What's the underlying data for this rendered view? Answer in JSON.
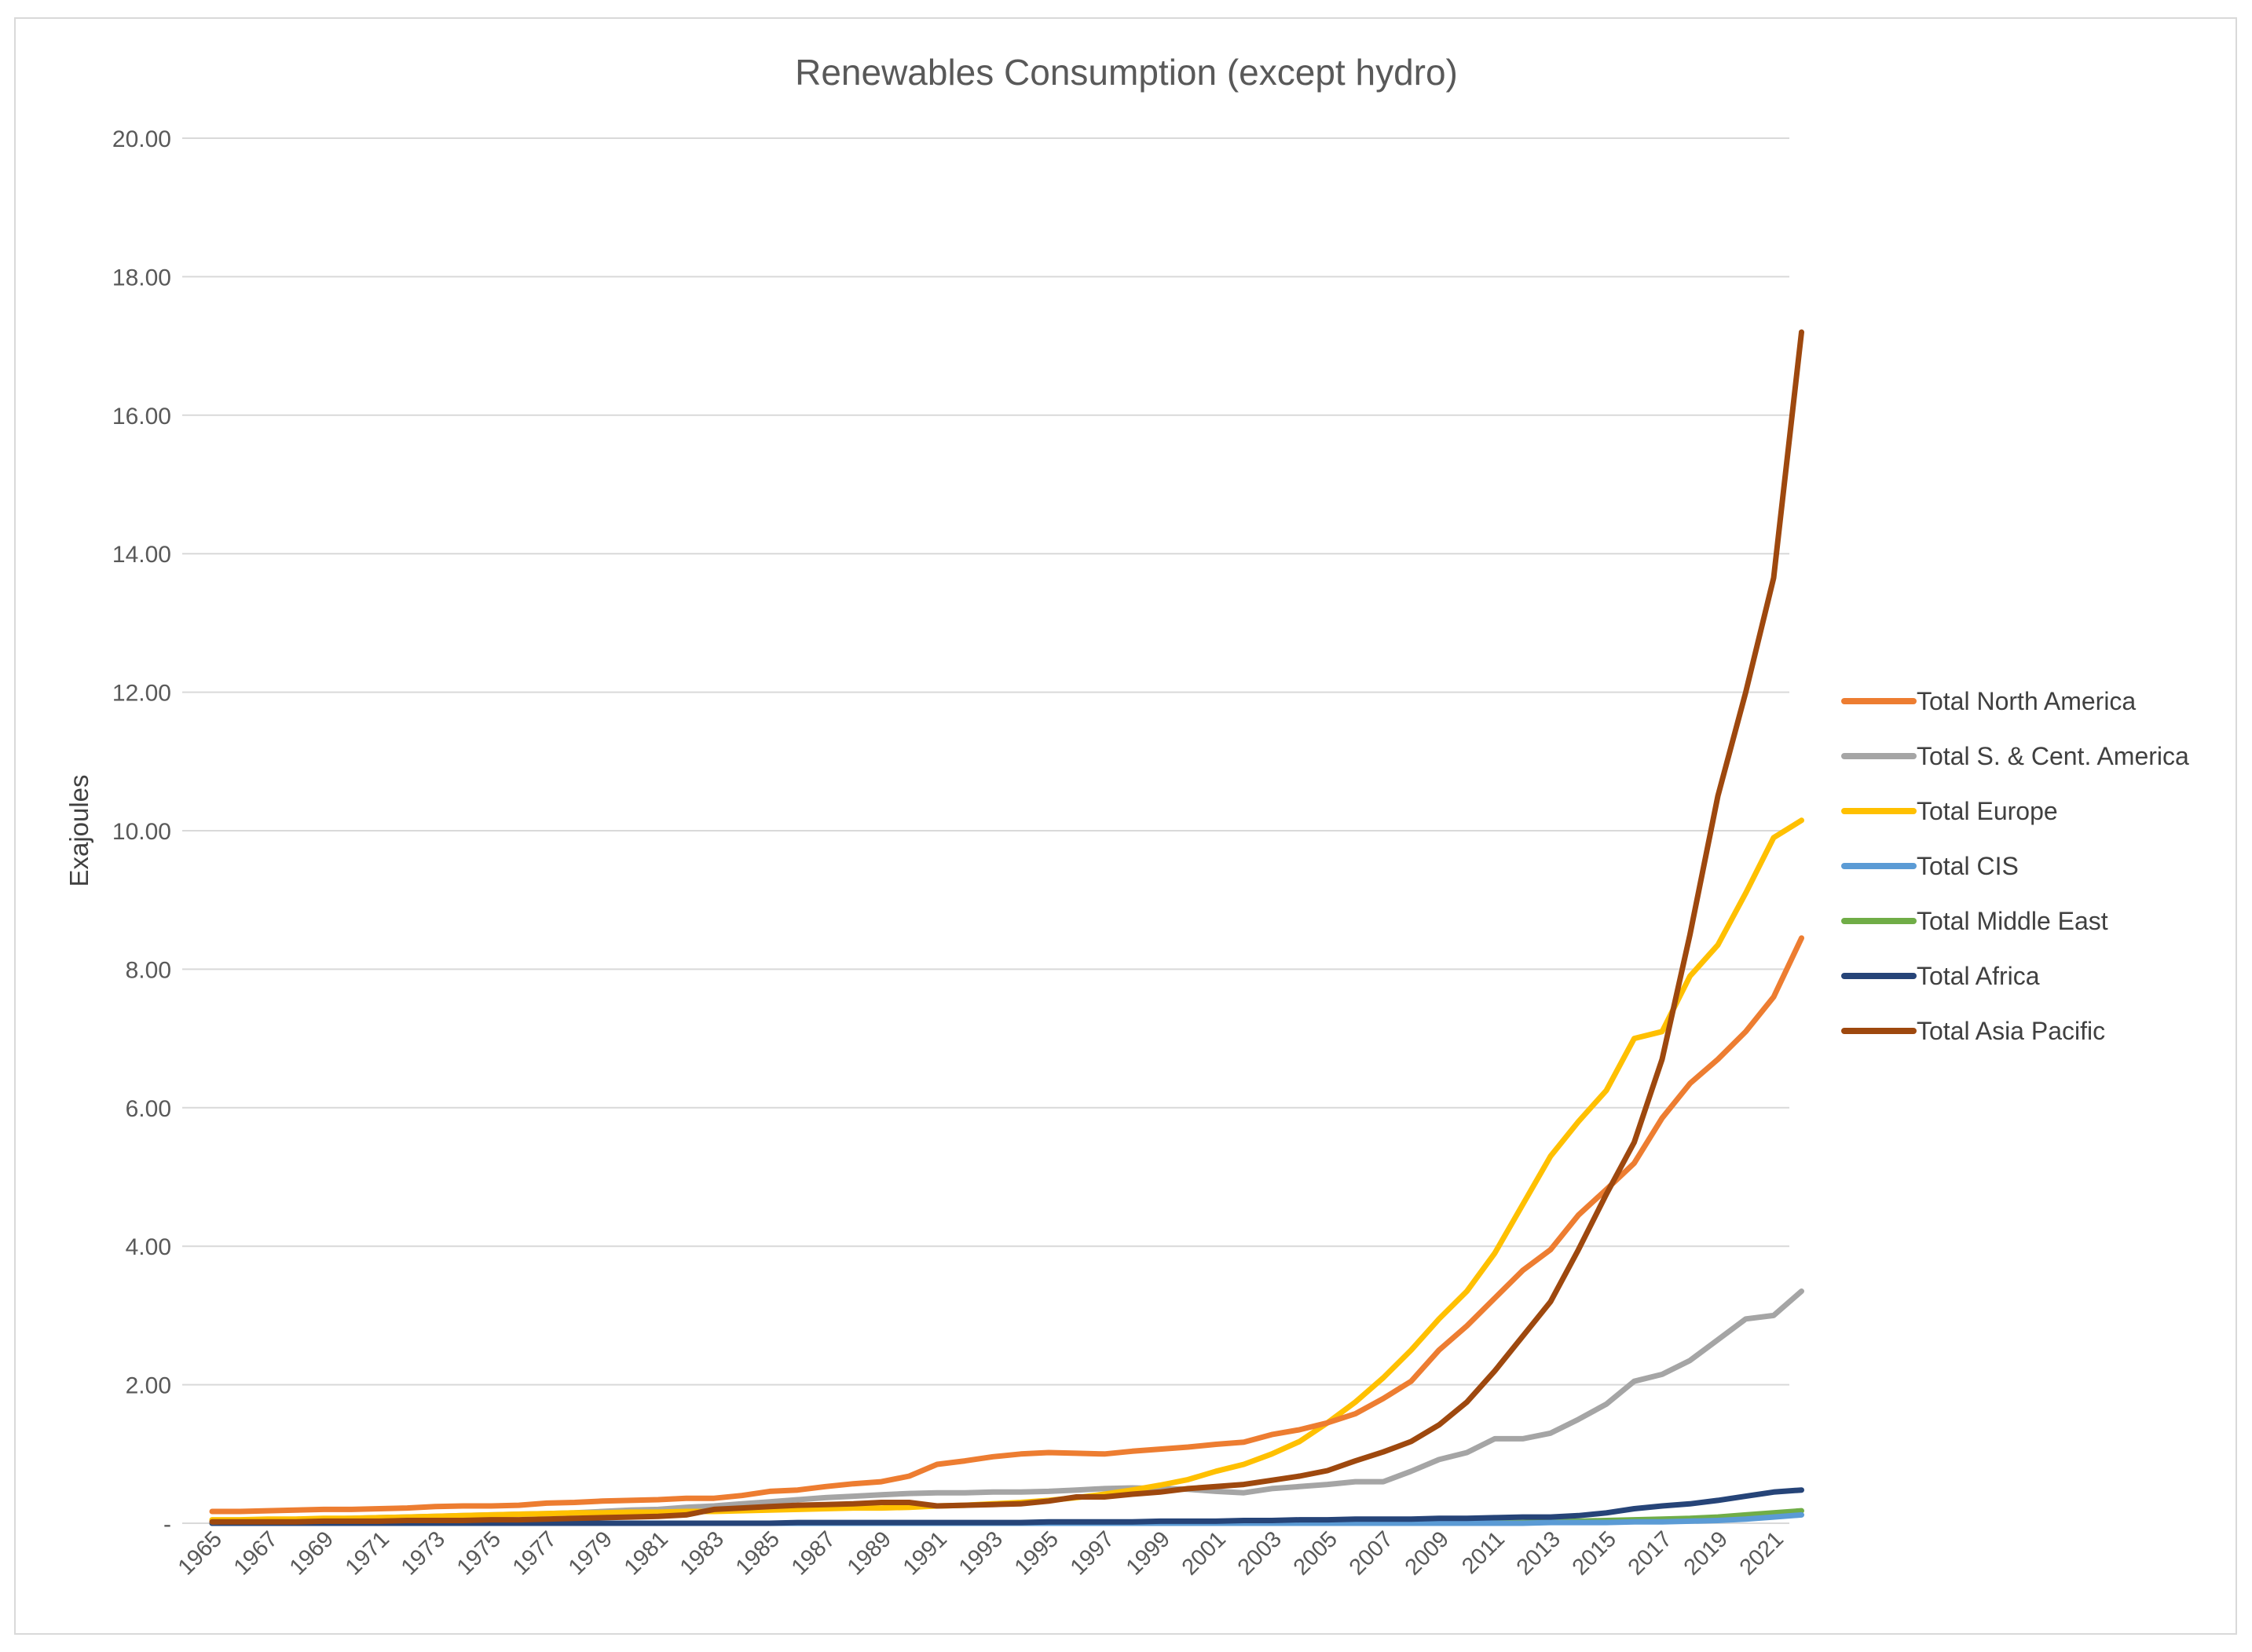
{
  "chart_data": {
    "type": "line",
    "title": "Renewables Consumption (except hydro)",
    "ylabel": "Exajoules",
    "xlabel": "",
    "ylim": [
      0,
      20
    ],
    "y_ticks": [
      {
        "value": 0,
        "label": "-"
      },
      {
        "value": 2,
        "label": "2.00"
      },
      {
        "value": 4,
        "label": "4.00"
      },
      {
        "value": 6,
        "label": "6.00"
      },
      {
        "value": 8,
        "label": "8.00"
      },
      {
        "value": 10,
        "label": "10.00"
      },
      {
        "value": 12,
        "label": "12.00"
      },
      {
        "value": 14,
        "label": "14.00"
      },
      {
        "value": 16,
        "label": "16.00"
      },
      {
        "value": 18,
        "label": "18.00"
      },
      {
        "value": 20,
        "label": "20.00"
      }
    ],
    "x_tick_labels": [
      "1965",
      "1967",
      "1969",
      "1971",
      "1973",
      "1975",
      "1977",
      "1979",
      "1981",
      "1983",
      "1985",
      "1987",
      "1989",
      "1991",
      "1993",
      "1995",
      "1997",
      "1999",
      "2001",
      "2003",
      "2005",
      "2007",
      "2009",
      "2011",
      "2013",
      "2015",
      "2017",
      "2019",
      "2021"
    ],
    "x_start": 1965,
    "x_end": 2021,
    "grid": true,
    "legend_position": "right",
    "series": [
      {
        "name": "Total North America",
        "color": "#ED7D31",
        "values": [
          0.17,
          0.17,
          0.18,
          0.19,
          0.2,
          0.2,
          0.21,
          0.22,
          0.24,
          0.25,
          0.25,
          0.26,
          0.29,
          0.3,
          0.32,
          0.33,
          0.34,
          0.36,
          0.36,
          0.4,
          0.46,
          0.48,
          0.53,
          0.57,
          0.6,
          0.68,
          0.85,
          0.9,
          0.96,
          1.0,
          1.02,
          1.01,
          1.0,
          1.04,
          1.07,
          1.1,
          1.14,
          1.17,
          1.28,
          1.35,
          1.45,
          1.58,
          1.8,
          2.05,
          2.5,
          2.85,
          3.25,
          3.65,
          3.95,
          4.45,
          4.82,
          5.2,
          5.85,
          6.35,
          6.7,
          7.1,
          7.6,
          8.45
        ]
      },
      {
        "name": "Total S. & Cent. America",
        "color": "#A5A5A5",
        "values": [
          0.02,
          0.03,
          0.04,
          0.05,
          0.06,
          0.07,
          0.08,
          0.09,
          0.1,
          0.11,
          0.12,
          0.13,
          0.14,
          0.15,
          0.17,
          0.19,
          0.2,
          0.23,
          0.25,
          0.28,
          0.31,
          0.34,
          0.37,
          0.39,
          0.41,
          0.43,
          0.44,
          0.44,
          0.45,
          0.45,
          0.46,
          0.48,
          0.5,
          0.51,
          0.5,
          0.49,
          0.46,
          0.44,
          0.5,
          0.53,
          0.56,
          0.6,
          0.6,
          0.75,
          0.92,
          1.02,
          1.22,
          1.22,
          1.3,
          1.5,
          1.72,
          2.05,
          2.15,
          2.35,
          2.65,
          2.95,
          3.0,
          3.35
        ]
      },
      {
        "name": "Total Europe",
        "color": "#FFC000",
        "values": [
          0.05,
          0.05,
          0.06,
          0.06,
          0.07,
          0.07,
          0.08,
          0.09,
          0.1,
          0.11,
          0.12,
          0.13,
          0.14,
          0.15,
          0.15,
          0.16,
          0.16,
          0.17,
          0.17,
          0.18,
          0.19,
          0.2,
          0.21,
          0.22,
          0.22,
          0.23,
          0.25,
          0.26,
          0.28,
          0.3,
          0.33,
          0.37,
          0.42,
          0.48,
          0.55,
          0.63,
          0.75,
          0.85,
          1.0,
          1.18,
          1.45,
          1.75,
          2.1,
          2.5,
          2.95,
          3.35,
          3.9,
          4.6,
          5.3,
          5.8,
          6.25,
          7.0,
          7.1,
          7.9,
          8.35,
          9.1,
          9.9,
          10.15
        ]
      },
      {
        "name": "Total CIS",
        "color": "#5B9BD5",
        "values": [
          0.0,
          0.0,
          0.0,
          0.0,
          0.0,
          0.0,
          0.0,
          0.0,
          0.0,
          0.0,
          0.0,
          0.0,
          0.0,
          0.0,
          0.0,
          0.0,
          0.0,
          0.0,
          0.0,
          0.0,
          0.0,
          0.0,
          0.0,
          0.0,
          0.0,
          0.0,
          0.0,
          0.0,
          0.0,
          0.0,
          0.0,
          0.0,
          0.0,
          0.0,
          0.0,
          0.0,
          0.0,
          0.0,
          0.0,
          0.0,
          0.0,
          0.0,
          0.0,
          0.0,
          0.0,
          0.0,
          0.0,
          0.0,
          0.01,
          0.01,
          0.01,
          0.02,
          0.02,
          0.03,
          0.04,
          0.06,
          0.09,
          0.12
        ]
      },
      {
        "name": "Total Middle East",
        "color": "#70AD47",
        "values": [
          0.0,
          0.0,
          0.0,
          0.0,
          0.0,
          0.0,
          0.0,
          0.0,
          0.0,
          0.0,
          0.0,
          0.0,
          0.0,
          0.0,
          0.0,
          0.0,
          0.0,
          0.0,
          0.0,
          0.0,
          0.0,
          0.0,
          0.0,
          0.0,
          0.0,
          0.0,
          0.0,
          0.0,
          0.0,
          0.0,
          0.0,
          0.0,
          0.0,
          0.0,
          0.0,
          0.0,
          0.0,
          0.0,
          0.0,
          0.0,
          0.0,
          0.0,
          0.0,
          0.0,
          0.0,
          0.01,
          0.01,
          0.01,
          0.02,
          0.03,
          0.04,
          0.05,
          0.06,
          0.07,
          0.09,
          0.12,
          0.15,
          0.18
        ]
      },
      {
        "name": "Total Africa",
        "color": "#264478",
        "values": [
          0.0,
          0.0,
          0.0,
          0.0,
          0.0,
          0.0,
          0.0,
          0.0,
          0.0,
          0.0,
          0.0,
          0.0,
          0.0,
          0.0,
          0.0,
          0.0,
          0.0,
          0.0,
          0.0,
          0.0,
          0.0,
          0.01,
          0.01,
          0.01,
          0.01,
          0.01,
          0.01,
          0.01,
          0.01,
          0.01,
          0.02,
          0.02,
          0.02,
          0.02,
          0.03,
          0.03,
          0.03,
          0.04,
          0.04,
          0.05,
          0.05,
          0.06,
          0.06,
          0.06,
          0.07,
          0.07,
          0.08,
          0.09,
          0.09,
          0.11,
          0.15,
          0.21,
          0.25,
          0.28,
          0.33,
          0.39,
          0.45,
          0.48
        ]
      },
      {
        "name": "Total Asia Pacific",
        "color": "#9E480E",
        "values": [
          0.02,
          0.02,
          0.02,
          0.02,
          0.03,
          0.03,
          0.03,
          0.04,
          0.04,
          0.04,
          0.05,
          0.05,
          0.06,
          0.07,
          0.08,
          0.09,
          0.1,
          0.12,
          0.2,
          0.22,
          0.24,
          0.26,
          0.27,
          0.28,
          0.3,
          0.3,
          0.25,
          0.26,
          0.27,
          0.28,
          0.32,
          0.38,
          0.38,
          0.42,
          0.45,
          0.5,
          0.53,
          0.56,
          0.62,
          0.68,
          0.76,
          0.9,
          1.03,
          1.18,
          1.42,
          1.75,
          2.2,
          2.7,
          3.2,
          3.95,
          4.75,
          5.5,
          6.7,
          8.5,
          10.5,
          12.0,
          13.65,
          17.2
        ]
      }
    ]
  }
}
